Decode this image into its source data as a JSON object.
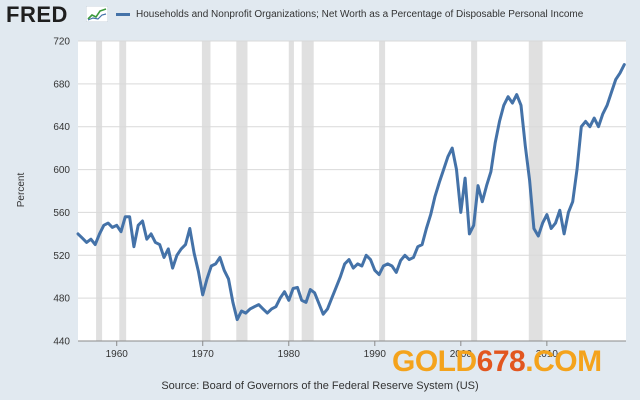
{
  "header": {
    "logo": "FRED",
    "legend_label": "Households and Nonprofit Organizations; Net Worth as a Percentage of Disposable Personal Income"
  },
  "source": "Source: Board of Governors of the Federal Reserve System (US)",
  "watermark": {
    "part1": "GOLD",
    "part2": "678",
    "part3": ".COM"
  },
  "colors": {
    "line": "#4472a8",
    "recession": "#e0e0e0",
    "background": "#e1e9f0",
    "plot": "#ffffff",
    "grid": "#d9d9d9"
  },
  "chart_data": {
    "type": "line",
    "ylabel": "Percent",
    "xlabel": "",
    "xlim": [
      1955.5,
      2019.2
    ],
    "ylim": [
      440,
      720
    ],
    "yticks": [
      440,
      480,
      520,
      560,
      600,
      640,
      680,
      720
    ],
    "xticks": [
      1960,
      1970,
      1980,
      1990,
      2000,
      2010
    ],
    "recessions": [
      [
        1957.6,
        1958.3
      ],
      [
        1960.3,
        1961.1
      ],
      [
        1969.9,
        1970.9
      ],
      [
        1973.9,
        1975.2
      ],
      [
        1980.0,
        1980.6
      ],
      [
        1981.5,
        1982.9
      ],
      [
        1990.5,
        1991.2
      ],
      [
        2001.2,
        2001.9
      ],
      [
        2007.9,
        2009.5
      ]
    ],
    "series": [
      {
        "name": "Households and Nonprofit Organizations; Net Worth as a Percentage of Disposable Personal Income",
        "x": [
          1955.5,
          1956,
          1956.5,
          1957,
          1957.5,
          1958,
          1958.5,
          1959,
          1959.5,
          1960,
          1960.5,
          1961,
          1961.5,
          1962,
          1962.5,
          1963,
          1963.5,
          1964,
          1964.5,
          1965,
          1965.5,
          1966,
          1966.5,
          1967,
          1967.5,
          1968,
          1968.5,
          1969,
          1969.5,
          1970,
          1970.5,
          1971,
          1971.5,
          1972,
          1972.5,
          1973,
          1973.5,
          1974,
          1974.5,
          1975,
          1975.5,
          1976,
          1976.5,
          1977,
          1977.5,
          1978,
          1978.5,
          1979,
          1979.5,
          1980,
          1980.5,
          1981,
          1981.5,
          1982,
          1982.5,
          1983,
          1983.5,
          1984,
          1984.5,
          1985,
          1985.5,
          1986,
          1986.5,
          1987,
          1987.5,
          1988,
          1988.5,
          1989,
          1989.5,
          1990,
          1990.5,
          1991,
          1991.5,
          1992,
          1992.5,
          1993,
          1993.5,
          1994,
          1994.5,
          1995,
          1995.5,
          1996,
          1996.5,
          1997,
          1997.5,
          1998,
          1998.5,
          1999,
          1999.5,
          2000,
          2000.5,
          2001,
          2001.5,
          2002,
          2002.5,
          2003,
          2003.5,
          2004,
          2004.5,
          2005,
          2005.5,
          2006,
          2006.5,
          2007,
          2007.5,
          2008,
          2008.5,
          2009,
          2009.5,
          2010,
          2010.5,
          2011,
          2011.5,
          2012,
          2012.5,
          2013,
          2013.5,
          2014,
          2014.5,
          2015,
          2015.5,
          2016,
          2016.5,
          2017,
          2017.5,
          2018,
          2018.5,
          2019
        ],
        "values": [
          540,
          536,
          532,
          535,
          530,
          540,
          548,
          550,
          546,
          548,
          542,
          556,
          556,
          528,
          548,
          552,
          535,
          540,
          532,
          530,
          518,
          526,
          508,
          520,
          526,
          530,
          545,
          522,
          505,
          483,
          498,
          510,
          512,
          518,
          506,
          498,
          476,
          460,
          468,
          466,
          470,
          472,
          474,
          470,
          466,
          470,
          472,
          480,
          486,
          478,
          489,
          490,
          478,
          476,
          488,
          485,
          475,
          465,
          470,
          480,
          490,
          500,
          512,
          516,
          508,
          512,
          510,
          520,
          516,
          506,
          502,
          510,
          512,
          510,
          504,
          515,
          520,
          516,
          518,
          528,
          530,
          545,
          558,
          575,
          588,
          600,
          612,
          620,
          600,
          560,
          592,
          540,
          548,
          585,
          570,
          585,
          598,
          625,
          645,
          660,
          668,
          662,
          670,
          660,
          622,
          590,
          545,
          538,
          550,
          558,
          545,
          550,
          562,
          540,
          560,
          570,
          600,
          640,
          645,
          640,
          648,
          640,
          652,
          660,
          672,
          684,
          690,
          698
        ]
      }
    ]
  }
}
